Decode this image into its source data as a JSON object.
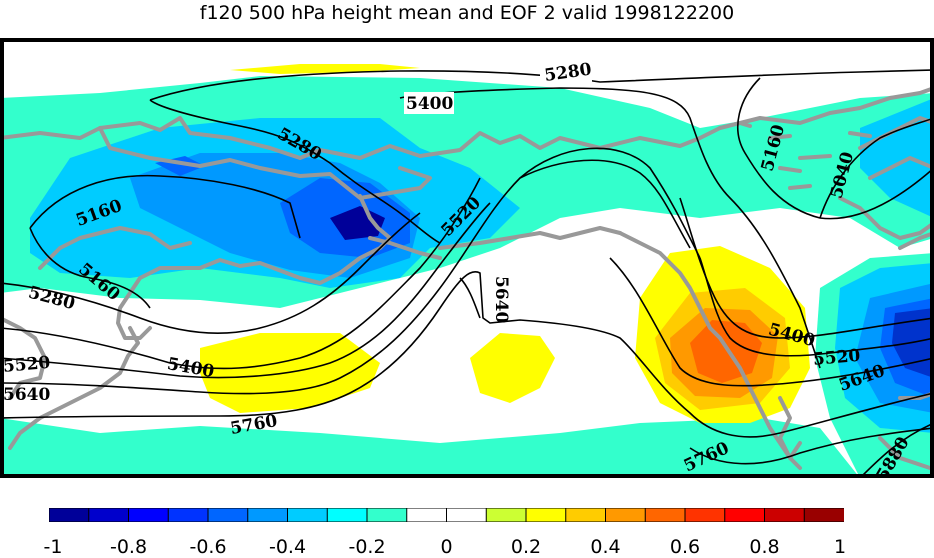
{
  "title": "f120 500 hPa height mean and EOF 2 valid 1998122200",
  "colors": {
    "teal": "#33ffcc",
    "light_blue": "#00ccff",
    "mid_blue": "#0099ff",
    "blue": "#0066ff",
    "deep_blue": "#0033cc",
    "navy": "#000099",
    "yellow": "#ffff00",
    "gold": "#ffcc00",
    "orange": "#ff9900",
    "red_orange": "#ff6600",
    "red": "#ff3300",
    "coastline": "#999999",
    "contour": "#000000"
  },
  "contour_labels": [
    {
      "text": "5280"
    },
    {
      "text": "5400"
    },
    {
      "text": "5280"
    },
    {
      "text": "5160"
    },
    {
      "text": "5160"
    },
    {
      "text": "5280"
    },
    {
      "text": "5520"
    },
    {
      "text": "5400"
    },
    {
      "text": "5520"
    },
    {
      "text": "5640"
    },
    {
      "text": "5640"
    },
    {
      "text": "5760"
    },
    {
      "text": "5160"
    },
    {
      "text": "5040"
    },
    {
      "text": "5400"
    },
    {
      "text": "5520"
    },
    {
      "text": "5640"
    },
    {
      "text": "5760"
    },
    {
      "text": "5880"
    }
  ],
  "colorbar": {
    "colors": [
      "#000099",
      "#0000cc",
      "#0000ff",
      "#0033ff",
      "#0066ff",
      "#0099ff",
      "#00ccff",
      "#00ffff",
      "#33ffcc",
      "#ffffff",
      "#ffffff",
      "#ccff33",
      "#ffff00",
      "#ffcc00",
      "#ff9900",
      "#ff6600",
      "#ff3300",
      "#ff0000",
      "#cc0000",
      "#990000"
    ],
    "tick_labels": [
      "-1",
      "-0.8",
      "-0.6",
      "-0.4",
      "-0.2",
      "0",
      "0.2",
      "0.4",
      "0.6",
      "0.8",
      "1"
    ]
  }
}
